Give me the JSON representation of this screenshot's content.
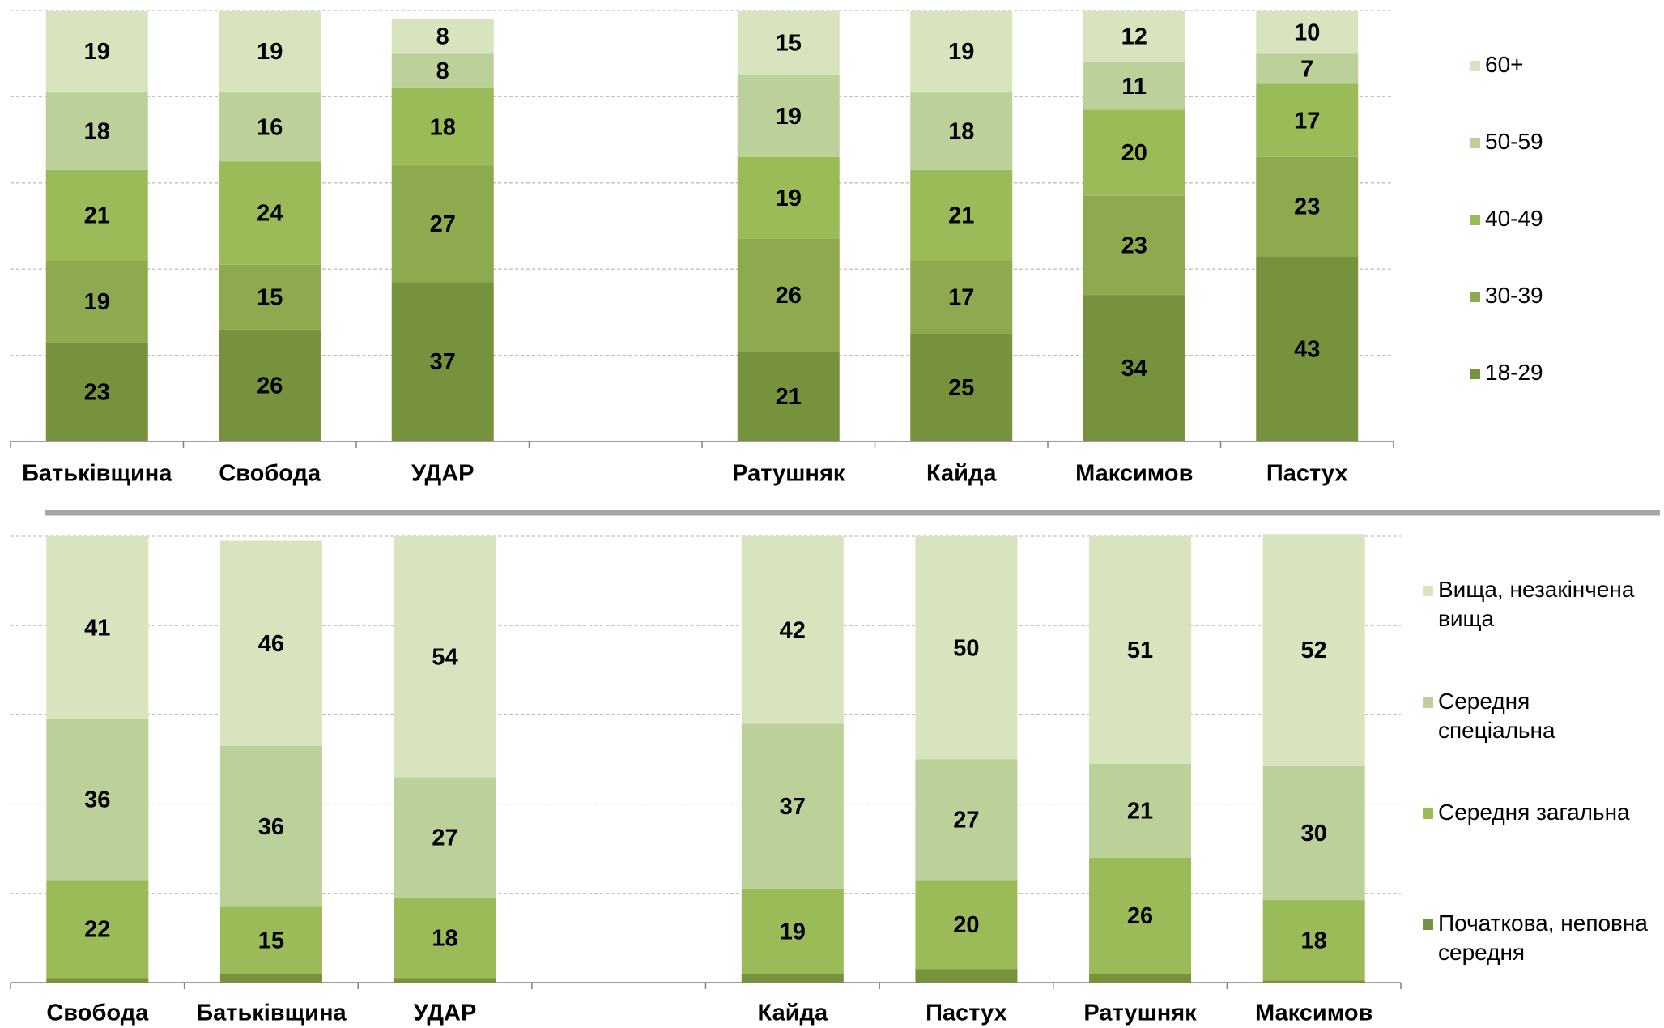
{
  "chart_data": [
    {
      "type": "stacked_bar",
      "categories": [
        "Батьківщина",
        "Свобода",
        "УДАР",
        null,
        "Ратушняк",
        "Кайда",
        "Максимов",
        "Пастух"
      ],
      "series": [
        {
          "name": "18-29",
          "color": "#76923c",
          "values": [
            23,
            26,
            37,
            null,
            21,
            25,
            34,
            43
          ]
        },
        {
          "name": "30-39",
          "color": "#8eaa4f",
          "values": [
            19,
            15,
            27,
            null,
            26,
            17,
            23,
            23
          ]
        },
        {
          "name": "40-49",
          "color": "#9bbb59",
          "values": [
            21,
            24,
            18,
            null,
            19,
            21,
            20,
            17
          ]
        },
        {
          "name": "50-59",
          "color": "#bcd09a",
          "values": [
            18,
            16,
            8,
            null,
            19,
            18,
            11,
            7
          ]
        },
        {
          "name": "60+",
          "color": "#d7e4bd",
          "values": [
            19,
            19,
            8,
            null,
            15,
            19,
            12,
            10
          ]
        }
      ],
      "ylim": [
        0,
        100
      ],
      "yticks": [
        0,
        20,
        40,
        60,
        80,
        100
      ],
      "grid": true,
      "legend": "right"
    },
    {
      "type": "stacked_bar",
      "categories": [
        "Свобода",
        "Батьківщина",
        "УДАР",
        null,
        "Кайда",
        "Пастух",
        "Ратушняк",
        "Максимов"
      ],
      "series": [
        {
          "name": "Початкова, неповна середня",
          "color": "#76923c",
          "values": [
            1,
            2,
            1,
            null,
            2,
            3,
            2,
            0.5
          ]
        },
        {
          "name": "Середня загальна",
          "color": "#9bbb59",
          "values": [
            22,
            15,
            18,
            null,
            19,
            20,
            26,
            18
          ]
        },
        {
          "name": "Середня спеціальна",
          "color": "#bcd09a",
          "values": [
            36,
            36,
            27,
            null,
            37,
            27,
            21,
            30
          ]
        },
        {
          "name": "Вища, незакінчена вища",
          "color": "#d7e4bd",
          "values": [
            41,
            46,
            54,
            null,
            42,
            50,
            51,
            52
          ]
        }
      ],
      "ylim": [
        0,
        100
      ],
      "yticks": [
        0,
        20,
        40,
        60,
        80,
        100
      ],
      "grid": true,
      "legend": "right"
    }
  ]
}
